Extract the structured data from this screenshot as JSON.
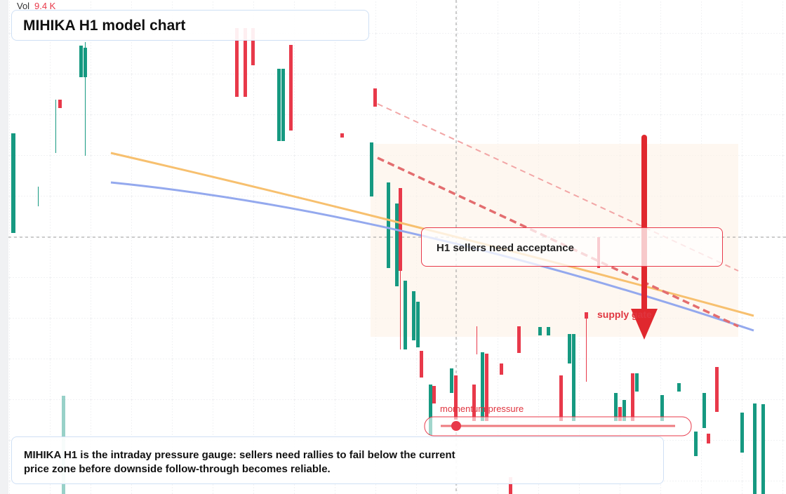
{
  "volume": {
    "label": "Vol",
    "value": "9.4 K"
  },
  "header": {
    "title": "MIHIKA H1 model chart"
  },
  "annotations": {
    "callout": "H1 sellers need acceptance",
    "supply": "supply gate",
    "momentum": "momentum pressure"
  },
  "footer": {
    "text": "MIHIKA H1 is the intraday pressure gauge: sellers need rallies to fail below the current price zone before downside follow-through becomes reliable."
  }
}
